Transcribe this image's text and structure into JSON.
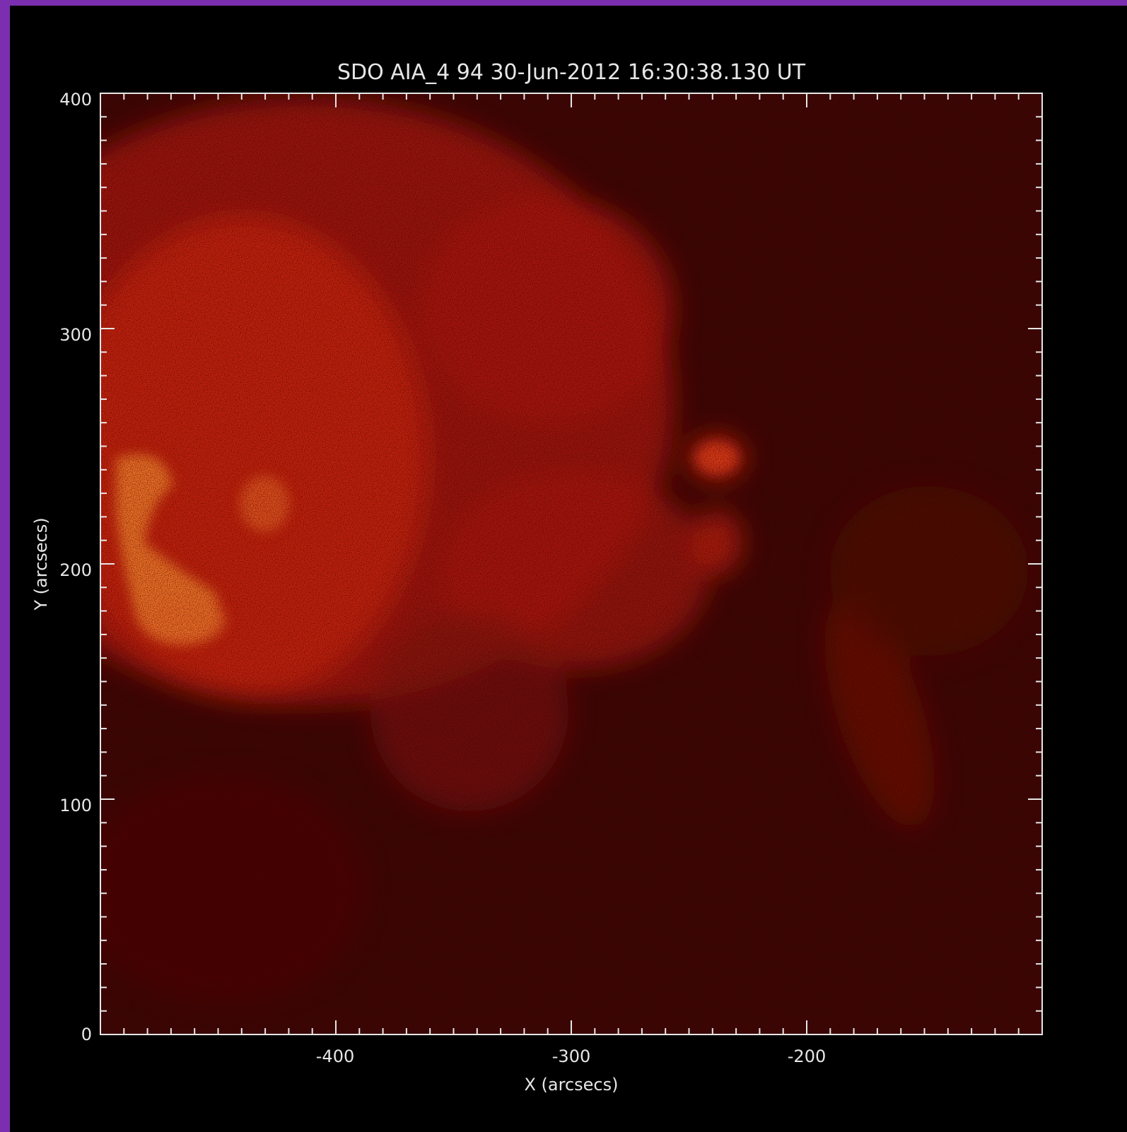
{
  "colors": {
    "border": "#7b2fb0",
    "background": "#000000",
    "axis": "#e6e6e6",
    "image_dark": "#2a0503",
    "image_mid": "#a0180c",
    "image_bright": "#e8381a",
    "image_hot": "#f07a2a"
  },
  "figure": {
    "title": "SDO AIA_4 94 30-Jun-2012 16:30:38.130 UT",
    "xlabel": "X (arcsecs)",
    "ylabel": "Y (arcsecs)",
    "colormap": "AIA 94 red",
    "x_ticks": [
      "-400",
      "-300",
      "-200"
    ],
    "y_ticks": [
      "400",
      "300",
      "200",
      "100",
      "0"
    ],
    "xlim": [
      -500,
      -100
    ],
    "ylim": [
      0,
      400
    ]
  }
}
